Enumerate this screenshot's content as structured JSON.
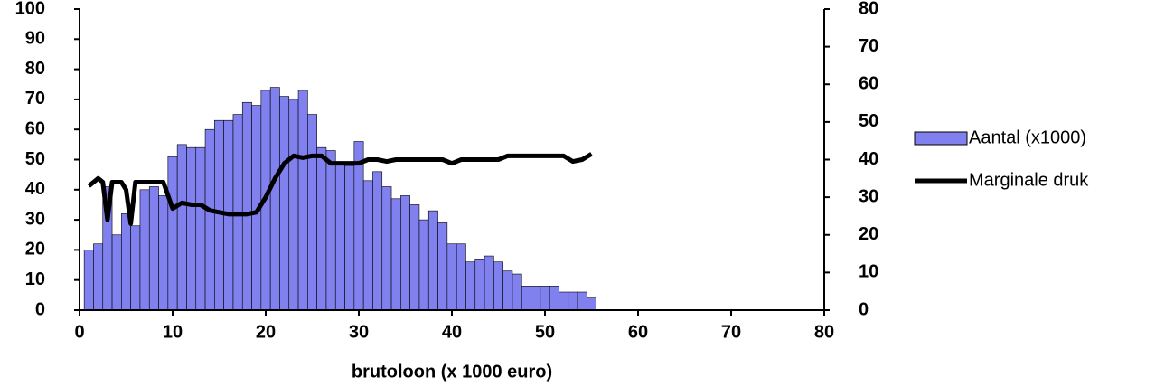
{
  "chart_data": {
    "type": "histogram-line",
    "x_label": "brutoloon (x 1000 euro)",
    "xlim": [
      0,
      80
    ],
    "xticks": [
      0,
      10,
      20,
      30,
      40,
      50,
      60,
      70,
      80
    ],
    "ylim": [
      0,
      100
    ],
    "yticks": [
      0,
      10,
      20,
      30,
      40,
      50,
      60,
      70,
      80,
      90,
      100
    ],
    "y2lim": [
      0,
      80
    ],
    "y2ticks": [
      0,
      10,
      20,
      30,
      40,
      50,
      60,
      70,
      80
    ],
    "series": [
      {
        "name": "Aantal (x1000)",
        "type": "histogram",
        "color": "#8080ee",
        "bins": [
          0.5,
          1.5,
          2.5,
          3.5,
          4.5,
          5.5,
          6.5,
          7.5,
          8.5,
          9.5,
          10.5,
          11.5,
          12.5,
          13.5,
          14.5,
          15.5,
          16.5,
          17.5,
          18.5,
          19.5,
          20.5,
          21.5,
          22.5,
          23.5,
          24.5,
          25.5,
          26.5,
          27.5,
          28.5,
          29.5,
          30.5,
          31.5,
          32.5,
          33.5,
          34.5,
          35.5,
          36.5,
          37.5,
          38.5,
          39.5,
          40.5,
          41.5,
          42.5,
          43.5,
          44.5,
          45.5,
          46.5,
          47.5,
          48.5,
          49.5,
          50.5,
          51.5,
          52.5,
          53.5,
          54.5,
          55.5
        ],
        "values": [
          20,
          22,
          41,
          25,
          32,
          28,
          40,
          41,
          38,
          51,
          55,
          54,
          54,
          60,
          63,
          63,
          65,
          69,
          68,
          73,
          74,
          71,
          70,
          73,
          65,
          54,
          53,
          49,
          48,
          56,
          43,
          46,
          41,
          37,
          38,
          35,
          30,
          33,
          29,
          22,
          22,
          16,
          17,
          18,
          16,
          13,
          12,
          8,
          8,
          8,
          8,
          6,
          6,
          6,
          4
        ]
      },
      {
        "name": "Marginale druk",
        "type": "line",
        "axis": "y2",
        "color": "#000000",
        "x": [
          1,
          2,
          2.5,
          3,
          3.5,
          4.5,
          5,
          5.5,
          6,
          7,
          8,
          9,
          10,
          11,
          12,
          13,
          14,
          15,
          16,
          17,
          18,
          19,
          20,
          21,
          22,
          23,
          24,
          25,
          26,
          27,
          28,
          29,
          30,
          31,
          32,
          33,
          34,
          35,
          36,
          37,
          38,
          39,
          40,
          41,
          42,
          43,
          44,
          45,
          46,
          47,
          48,
          49,
          50,
          51,
          52,
          53,
          54,
          55
        ],
        "values": [
          33,
          35,
          34,
          24,
          34,
          34,
          32,
          23,
          34,
          34,
          34,
          34,
          27,
          28.5,
          28,
          28,
          26.5,
          26,
          25.5,
          25.5,
          25.5,
          26,
          30,
          35,
          39,
          41,
          40.5,
          41,
          41,
          39,
          39,
          39,
          39,
          40,
          40,
          39.5,
          40,
          40,
          40,
          40,
          40,
          40,
          39,
          40,
          40,
          40,
          40,
          40,
          41,
          41,
          41,
          41,
          41,
          41,
          41,
          39.5,
          40,
          41.5
        ]
      }
    ]
  }
}
